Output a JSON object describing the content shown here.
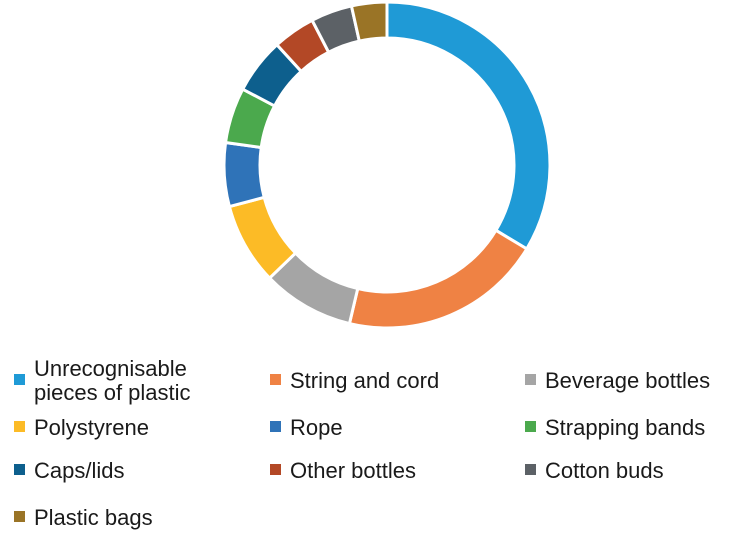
{
  "chart_data": {
    "type": "pie",
    "donut": true,
    "legend_position": "bottom",
    "categories": [
      "Unrecognisable pieces of plastic",
      "String and cord",
      "Beverage bottles",
      "Polystyrene",
      "Rope",
      "Strapping bands",
      "Caps/lids",
      "Other bottles",
      "Cotton buds",
      "Plastic bags"
    ],
    "legend_labels": [
      [
        "Unrecognisable",
        "pieces of plastic"
      ],
      [
        "String and cord"
      ],
      [
        "Beverage bottles"
      ],
      [
        "Polystyrene"
      ],
      [
        "Rope"
      ],
      [
        "Strapping bands"
      ],
      [
        "Caps/lids"
      ],
      [
        "Other bottles"
      ],
      [
        "Cotton buds"
      ],
      [
        "Plastic bags"
      ]
    ],
    "values": [
      33.6,
      20.1,
      9.1,
      8.1,
      6.3,
      5.5,
      5.5,
      4.2,
      4.1,
      3.5
    ],
    "colors": [
      "#1f9ad6",
      "#ef8244",
      "#a5a5a5",
      "#fcbb26",
      "#2f73b8",
      "#4ba94d",
      "#0d5f8d",
      "#b34826",
      "#5c6166",
      "#9a7426"
    ]
  }
}
